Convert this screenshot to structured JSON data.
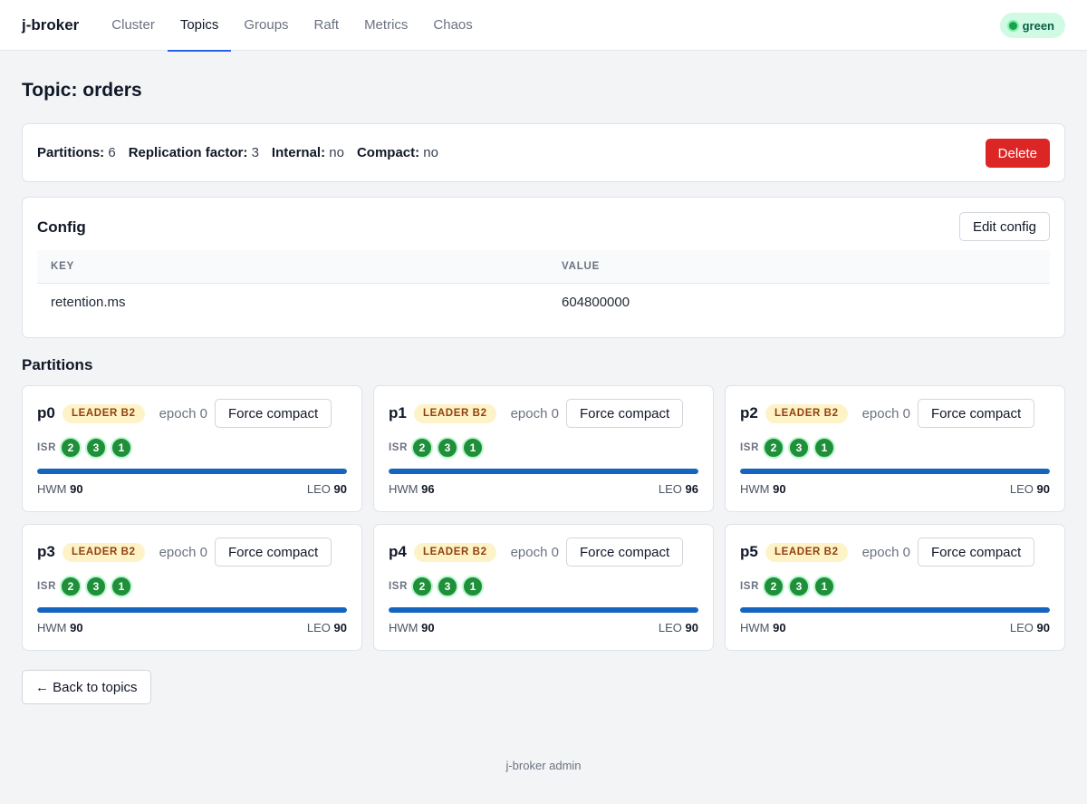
{
  "nav": {
    "brand": "j-broker",
    "links": [
      {
        "label": "Cluster"
      },
      {
        "label": "Topics"
      },
      {
        "label": "Groups"
      },
      {
        "label": "Raft"
      },
      {
        "label": "Metrics"
      },
      {
        "label": "Chaos"
      }
    ],
    "active": "Topics",
    "health": "green"
  },
  "page": {
    "title": "Topic: orders"
  },
  "summary": {
    "partitions_label": "Partitions:",
    "partitions_value": "6",
    "replication_label": "Replication factor:",
    "replication_value": "3",
    "internal_label": "Internal:",
    "internal_value": "no",
    "compact_label": "Compact:",
    "compact_value": "no",
    "delete_label": "Delete"
  },
  "config": {
    "title": "Config",
    "edit_label": "Edit config",
    "columns": [
      "KEY",
      "VALUE"
    ],
    "rows": [
      {
        "key": "retention.ms",
        "value": "604800000"
      }
    ]
  },
  "partitions": {
    "title": "Partitions",
    "isr_label": "ISR",
    "hwm_label": "HWM",
    "leo_label": "LEO",
    "compact_label": "Force compact",
    "items": [
      {
        "id": "p0",
        "leader": "LEADER B2",
        "epoch": "epoch 0",
        "isr": [
          "2",
          "3",
          "1"
        ],
        "hwm": "90",
        "leo": "90",
        "progress": 1.0
      },
      {
        "id": "p1",
        "leader": "LEADER B2",
        "epoch": "epoch 0",
        "isr": [
          "2",
          "3",
          "1"
        ],
        "hwm": "96",
        "leo": "96",
        "progress": 1.0
      },
      {
        "id": "p2",
        "leader": "LEADER B2",
        "epoch": "epoch 0",
        "isr": [
          "2",
          "3",
          "1"
        ],
        "hwm": "90",
        "leo": "90",
        "progress": 1.0
      },
      {
        "id": "p3",
        "leader": "LEADER B2",
        "epoch": "epoch 0",
        "isr": [
          "2",
          "3",
          "1"
        ],
        "hwm": "90",
        "leo": "90",
        "progress": 1.0
      },
      {
        "id": "p4",
        "leader": "LEADER B2",
        "epoch": "epoch 0",
        "isr": [
          "2",
          "3",
          "1"
        ],
        "hwm": "90",
        "leo": "90",
        "progress": 1.0
      },
      {
        "id": "p5",
        "leader": "LEADER B2",
        "epoch": "epoch 0",
        "isr": [
          "2",
          "3",
          "1"
        ],
        "hwm": "90",
        "leo": "90",
        "progress": 1.0
      }
    ]
  },
  "back_label": "← Back to topics",
  "footer": "j-broker admin",
  "colors": {
    "accent": "#2563eb",
    "danger": "#dc2626",
    "bar": "#1565c0",
    "isr": "#1f8f3a",
    "leader_bg": "#fef3c7",
    "health_bg": "#d1fae5"
  }
}
